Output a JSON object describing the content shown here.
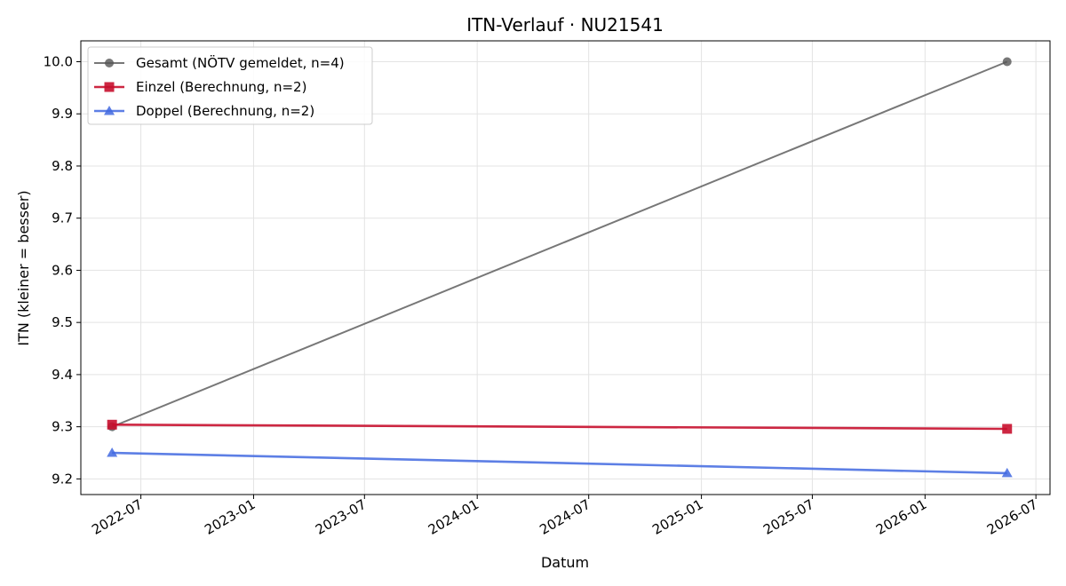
{
  "chart_data": {
    "type": "line",
    "title": "ITN-Verlauf · NU21541",
    "xlabel": "Datum",
    "ylabel": "ITN  (kleiner = besser)",
    "x_type": "date",
    "xlim": [
      "2022-03-25",
      "2026-07-24"
    ],
    "ylim": [
      9.17,
      10.04
    ],
    "x_ticks": [
      "2022-07-01",
      "2023-01-01",
      "2023-07-01",
      "2024-01-01",
      "2024-07-01",
      "2025-01-01",
      "2025-07-01",
      "2026-01-01",
      "2026-07-01"
    ],
    "x_tick_labels": [
      "2022-07",
      "2023-01",
      "2023-07",
      "2024-01",
      "2024-07",
      "2025-01",
      "2025-07",
      "2026-01",
      "2026-07"
    ],
    "y_ticks": [
      9.2,
      9.3,
      9.4,
      9.5,
      9.6,
      9.7,
      9.8,
      9.9,
      10.0
    ],
    "y_tick_labels": [
      "9.2",
      "9.3",
      "9.4",
      "9.5",
      "9.6",
      "9.7",
      "9.8",
      "9.9",
      "10.0"
    ],
    "grid": true,
    "legend_position": "top-left",
    "series": [
      {
        "name": "Gesamt (NÖTV gemeldet, n=4)",
        "color": "#555555",
        "marker": "circle",
        "x": [
          "2022-05-15",
          "2026-05-15"
        ],
        "y": [
          9.3,
          10.0
        ]
      },
      {
        "name": "Einzel (Berechnung, n=2)",
        "color": "#c8102e",
        "marker": "square",
        "x": [
          "2022-05-15",
          "2026-05-15"
        ],
        "y": [
          9.304,
          9.296
        ]
      },
      {
        "name": "Doppel (Berechnung, n=2)",
        "color": "#4169e1",
        "marker": "triangle",
        "x": [
          "2022-05-15",
          "2026-05-15"
        ],
        "y": [
          9.25,
          9.211
        ]
      }
    ]
  }
}
